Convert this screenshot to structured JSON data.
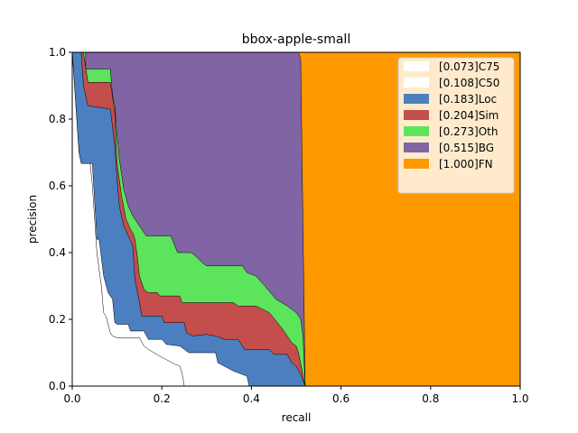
{
  "chart_data": {
    "type": "area",
    "title": "bbox-apple-small",
    "xlabel": "recall",
    "ylabel": "precision",
    "xlim": [
      0,
      1
    ],
    "ylim": [
      0,
      1
    ],
    "xticks": [
      "0.0",
      "0.2",
      "0.4",
      "0.6",
      "0.8",
      "1.0"
    ],
    "yticks": [
      "0.0",
      "0.2",
      "0.4",
      "0.6",
      "0.8",
      "1.0"
    ],
    "legend_position": "top-right",
    "grid": false,
    "series": [
      {
        "name": "[0.073]C75",
        "color": "#ffffff",
        "points": [
          [
            0.0,
            1.0
          ],
          [
            0.005,
            0.9
          ],
          [
            0.01,
            0.8
          ],
          [
            0.015,
            0.7
          ],
          [
            0.02,
            0.667
          ],
          [
            0.04,
            0.667
          ],
          [
            0.045,
            0.6
          ],
          [
            0.055,
            0.4
          ],
          [
            0.065,
            0.3
          ],
          [
            0.07,
            0.22
          ],
          [
            0.075,
            0.21
          ],
          [
            0.085,
            0.16
          ],
          [
            0.09,
            0.15
          ],
          [
            0.1,
            0.145
          ],
          [
            0.15,
            0.145
          ],
          [
            0.16,
            0.12
          ],
          [
            0.17,
            0.11
          ],
          [
            0.195,
            0.09
          ],
          [
            0.23,
            0.065
          ],
          [
            0.24,
            0.06
          ],
          [
            0.245,
            0.04
          ],
          [
            0.25,
            0.0
          ]
        ]
      },
      {
        "name": "[0.108]C50",
        "color": "#ffffff",
        "points": [
          [
            0.0,
            1.0
          ],
          [
            0.01,
            0.8
          ],
          [
            0.015,
            0.7
          ],
          [
            0.02,
            0.667
          ],
          [
            0.045,
            0.667
          ],
          [
            0.055,
            0.44
          ],
          [
            0.06,
            0.44
          ],
          [
            0.07,
            0.33
          ],
          [
            0.08,
            0.28
          ],
          [
            0.09,
            0.26
          ],
          [
            0.095,
            0.19
          ],
          [
            0.1,
            0.185
          ],
          [
            0.125,
            0.185
          ],
          [
            0.13,
            0.165
          ],
          [
            0.16,
            0.165
          ],
          [
            0.17,
            0.14
          ],
          [
            0.2,
            0.14
          ],
          [
            0.21,
            0.125
          ],
          [
            0.24,
            0.12
          ],
          [
            0.26,
            0.1
          ],
          [
            0.32,
            0.1
          ],
          [
            0.325,
            0.07
          ],
          [
            0.36,
            0.045
          ],
          [
            0.39,
            0.03
          ],
          [
            0.395,
            0.0
          ]
        ]
      },
      {
        "name": "[0.183]Loc",
        "color": "#4c7fbf",
        "points": [
          [
            0.0,
            1.0
          ],
          [
            0.02,
            1.0
          ],
          [
            0.025,
            0.9
          ],
          [
            0.035,
            0.84
          ],
          [
            0.085,
            0.83
          ],
          [
            0.095,
            0.72
          ],
          [
            0.1,
            0.62
          ],
          [
            0.105,
            0.54
          ],
          [
            0.115,
            0.48
          ],
          [
            0.125,
            0.45
          ],
          [
            0.135,
            0.42
          ],
          [
            0.14,
            0.32
          ],
          [
            0.15,
            0.25
          ],
          [
            0.155,
            0.21
          ],
          [
            0.2,
            0.21
          ],
          [
            0.205,
            0.19
          ],
          [
            0.25,
            0.19
          ],
          [
            0.255,
            0.16
          ],
          [
            0.27,
            0.15
          ],
          [
            0.3,
            0.155
          ],
          [
            0.32,
            0.15
          ],
          [
            0.34,
            0.14
          ],
          [
            0.37,
            0.14
          ],
          [
            0.38,
            0.12
          ],
          [
            0.385,
            0.11
          ],
          [
            0.44,
            0.11
          ],
          [
            0.45,
            0.095
          ],
          [
            0.48,
            0.095
          ],
          [
            0.49,
            0.07
          ],
          [
            0.5,
            0.06
          ],
          [
            0.51,
            0.035
          ],
          [
            0.52,
            0.0
          ]
        ]
      },
      {
        "name": "[0.204]Sim",
        "color": "#c44e4b",
        "points": [
          [
            0.0,
            1.0
          ],
          [
            0.025,
            1.0
          ],
          [
            0.035,
            0.91
          ],
          [
            0.085,
            0.91
          ],
          [
            0.095,
            0.82
          ],
          [
            0.1,
            0.67
          ],
          [
            0.11,
            0.57
          ],
          [
            0.12,
            0.5
          ],
          [
            0.13,
            0.47
          ],
          [
            0.135,
            0.46
          ],
          [
            0.14,
            0.44
          ],
          [
            0.145,
            0.39
          ],
          [
            0.15,
            0.33
          ],
          [
            0.16,
            0.29
          ],
          [
            0.17,
            0.28
          ],
          [
            0.19,
            0.28
          ],
          [
            0.195,
            0.27
          ],
          [
            0.24,
            0.27
          ],
          [
            0.245,
            0.25
          ],
          [
            0.36,
            0.25
          ],
          [
            0.37,
            0.24
          ],
          [
            0.41,
            0.24
          ],
          [
            0.44,
            0.22
          ],
          [
            0.47,
            0.17
          ],
          [
            0.49,
            0.13
          ],
          [
            0.5,
            0.12
          ],
          [
            0.505,
            0.1
          ],
          [
            0.52,
            0.0
          ]
        ]
      },
      {
        "name": "[0.273]Oth",
        "color": "#5ce45c",
        "points": [
          [
            0.0,
            1.0
          ],
          [
            0.03,
            1.0
          ],
          [
            0.03,
            0.95
          ],
          [
            0.085,
            0.95
          ],
          [
            0.09,
            0.87
          ],
          [
            0.095,
            0.84
          ],
          [
            0.1,
            0.75
          ],
          [
            0.105,
            0.68
          ],
          [
            0.115,
            0.59
          ],
          [
            0.125,
            0.54
          ],
          [
            0.135,
            0.51
          ],
          [
            0.145,
            0.49
          ],
          [
            0.155,
            0.47
          ],
          [
            0.165,
            0.45
          ],
          [
            0.22,
            0.45
          ],
          [
            0.235,
            0.4
          ],
          [
            0.265,
            0.4
          ],
          [
            0.275,
            0.39
          ],
          [
            0.29,
            0.37
          ],
          [
            0.3,
            0.36
          ],
          [
            0.38,
            0.36
          ],
          [
            0.39,
            0.34
          ],
          [
            0.41,
            0.33
          ],
          [
            0.43,
            0.3
          ],
          [
            0.455,
            0.26
          ],
          [
            0.48,
            0.24
          ],
          [
            0.5,
            0.22
          ],
          [
            0.51,
            0.2
          ],
          [
            0.515,
            0.15
          ],
          [
            0.52,
            0.0
          ]
        ]
      },
      {
        "name": "[0.515]BG",
        "color": "#8064a3",
        "points": [
          [
            0.0,
            1.0
          ],
          [
            0.505,
            1.0
          ],
          [
            0.51,
            0.98
          ],
          [
            0.52,
            0.0
          ]
        ]
      },
      {
        "name": "[1.000]FN",
        "color": "#ff9900",
        "points": [
          [
            0.0,
            1.0
          ],
          [
            1.0,
            1.0
          ],
          [
            1.0,
            0.0
          ]
        ]
      }
    ]
  }
}
